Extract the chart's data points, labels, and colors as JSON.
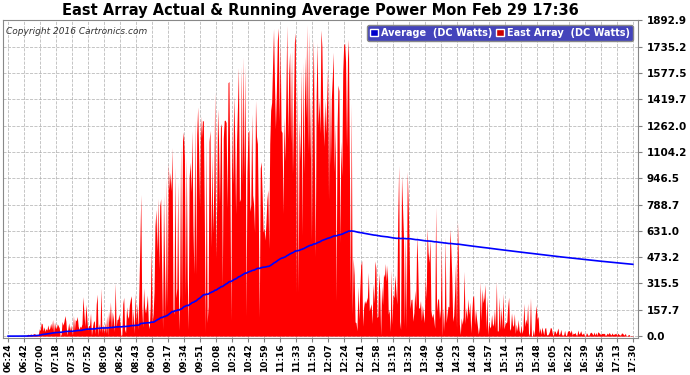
{
  "title": "East Array Actual & Running Average Power Mon Feb 29 17:36",
  "copyright": "Copyright 2016 Cartronics.com",
  "legend_avg": "Average  (DC Watts)",
  "legend_east": "East Array  (DC Watts)",
  "bg_color": "#ffffff",
  "plot_bg_color": "#ffffff",
  "grid_color": "#aaaaaa",
  "red_color": "#ff0000",
  "blue_color": "#0000ff",
  "title_color": "#000000",
  "yticks": [
    0.0,
    157.7,
    315.5,
    473.2,
    631.0,
    788.7,
    946.5,
    1104.2,
    1262.0,
    1419.7,
    1577.5,
    1735.2,
    1892.9
  ],
  "ymax": 1892.9,
  "ymin": 0.0,
  "xtick_labels": [
    "06:24",
    "06:42",
    "07:00",
    "07:18",
    "07:35",
    "07:52",
    "08:09",
    "08:26",
    "08:43",
    "09:00",
    "09:17",
    "09:34",
    "09:51",
    "10:08",
    "10:25",
    "10:42",
    "10:59",
    "11:16",
    "11:33",
    "11:50",
    "12:07",
    "12:24",
    "12:41",
    "12:58",
    "13:15",
    "13:32",
    "13:49",
    "14:06",
    "14:23",
    "14:40",
    "14:57",
    "15:14",
    "15:31",
    "15:48",
    "16:05",
    "16:22",
    "16:39",
    "16:56",
    "17:13",
    "17:30"
  ],
  "n_xticks": 40,
  "n_points": 660
}
